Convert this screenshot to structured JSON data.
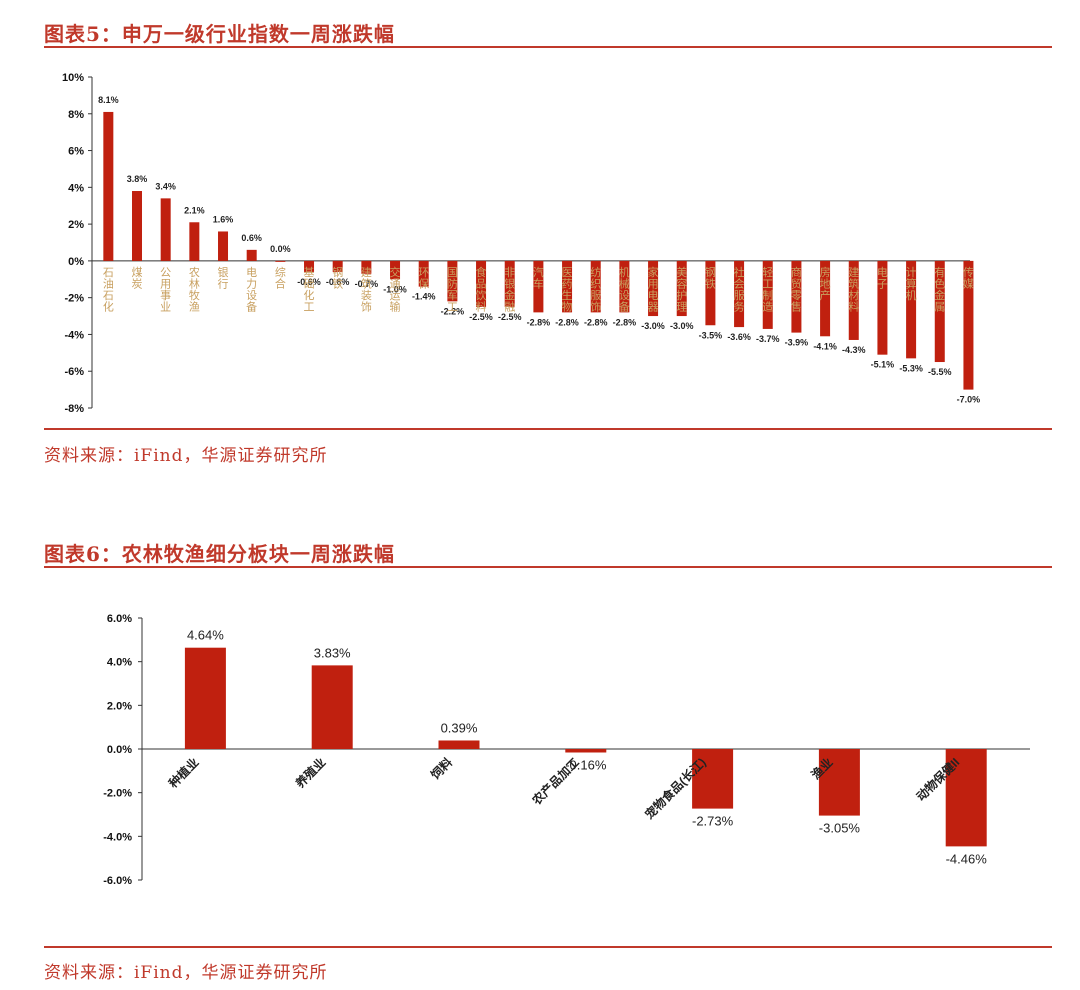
{
  "figure5": {
    "title": "图表5：申万一级行业指数一周涨跌幅",
    "source": "资料来源：iFind，华源证券研究所"
  },
  "figure6": {
    "title": "图表6：农林牧渔细分板块一周涨跌幅",
    "source": "资料来源：iFind，华源证券研究所"
  },
  "colors": {
    "accent": "#c0392b",
    "bar": "#c0200f",
    "gold_label": "#c8a060"
  },
  "chart_data": [
    {
      "type": "bar",
      "title": "",
      "xlabel": "",
      "ylabel": "",
      "ylim": [
        -8,
        10
      ],
      "yticks": [
        "10%",
        "8%",
        "6%",
        "4%",
        "2%",
        "0%",
        "-2%",
        "-4%",
        "-6%",
        "-8%"
      ],
      "categories": [
        "石油石化",
        "煤炭",
        "公用事业",
        "农林牧渔",
        "银行",
        "电力设备",
        "综合",
        "基础化工",
        "钢铁",
        "建筑装饰",
        "交通运输",
        "环保",
        "国防军工",
        "食品饮料",
        "非银金融",
        "汽车",
        "医药生物",
        "纺织服饰",
        "机械设备",
        "家用电器",
        "美容护理",
        "钢铁",
        "社会服务",
        "轻工制造",
        "商贸零售",
        "房地产",
        "建筑材料",
        "电子",
        "计算机",
        "有色金属",
        "传媒"
      ],
      "values": [
        8.1,
        3.8,
        3.4,
        2.1,
        1.6,
        0.6,
        0.0,
        -0.6,
        -0.6,
        -0.7,
        -1.0,
        -1.4,
        -2.2,
        -2.5,
        -2.5,
        -2.8,
        -2.8,
        -2.8,
        -2.8,
        -3.0,
        -3.0,
        -3.5,
        -3.6,
        -3.7,
        -3.9,
        -4.1,
        -4.3,
        -5.1,
        -5.3,
        -5.5,
        -7.0
      ],
      "data_labels": [
        "8.1%",
        "3.8%",
        "3.4%",
        "2.1%",
        "1.6%",
        "0.6%",
        "0.0%",
        "-0.6%",
        "-0.6%",
        "-0.7%",
        "-1.0%",
        "-1.4%",
        "-2.2%",
        "-2.5%",
        "-2.5%",
        "-2.8%",
        "-2.8%",
        "-2.8%",
        "-2.8%",
        "-3.0%",
        "-3.0%",
        "-3.5%",
        "-3.6%",
        "-3.7%",
        "-3.9%",
        "-4.1%",
        "-4.3%",
        "-5.1%",
        "-5.3%",
        "-5.5%",
        "-7.0%"
      ]
    },
    {
      "type": "bar",
      "title": "",
      "xlabel": "",
      "ylabel": "",
      "ylim": [
        -6,
        6
      ],
      "yticks": [
        "6.0%",
        "4.0%",
        "2.0%",
        "0.0%",
        "-2.0%",
        "-4.0%",
        "-6.0%"
      ],
      "categories": [
        "种植业",
        "养殖业",
        "饲料",
        "农产品加工",
        "宠物食品(长江)",
        "渔业",
        "动物保健II"
      ],
      "values": [
        4.64,
        3.83,
        0.39,
        -0.16,
        -2.73,
        -3.05,
        -4.46
      ],
      "data_labels": [
        "4.64%",
        "3.83%",
        "0.39%",
        "-0.16%",
        "-2.73%",
        "-3.05%",
        "-4.46%"
      ]
    }
  ]
}
